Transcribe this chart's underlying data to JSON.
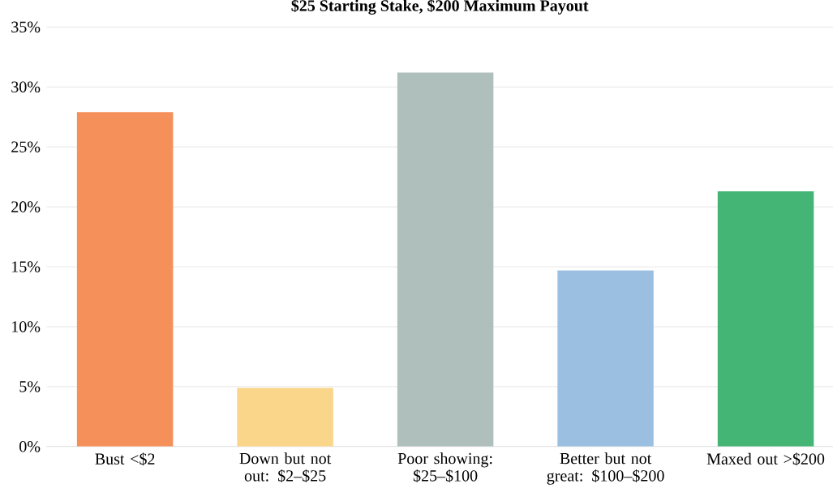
{
  "chart_data": {
    "type": "bar",
    "title": "$25 Starting Stake, $200 Maximum Payout",
    "categories": [
      "Bust <$2",
      "Down but not out: $2–$25",
      "Poor showing: $25–$100",
      "Better but not great: $100–$200",
      "Maxed out >$200"
    ],
    "values": [
      27.9,
      4.9,
      31.2,
      14.7,
      21.3
    ],
    "colors": [
      "#f5905a",
      "#f9d68a",
      "#afbfbb",
      "#9abfe0",
      "#44b575"
    ],
    "ylim": [
      0,
      35
    ],
    "yticks": [
      {
        "value": 0,
        "label": "0%"
      },
      {
        "value": 5,
        "label": "5%"
      },
      {
        "value": 10,
        "label": "10%"
      },
      {
        "value": 15,
        "label": "15%"
      },
      {
        "value": 20,
        "label": "20%"
      },
      {
        "value": 25,
        "label": "25%"
      },
      {
        "value": 30,
        "label": "30%"
      },
      {
        "value": 35,
        "label": "35%"
      }
    ],
    "grid": "y"
  }
}
